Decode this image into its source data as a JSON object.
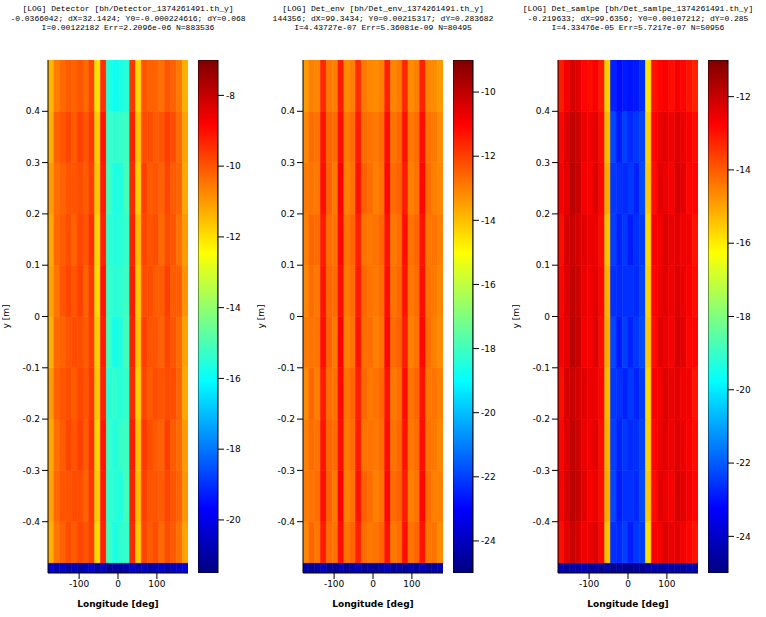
{
  "chart_data": [
    {
      "type": "heatmap",
      "title": "[LOG] Detector [bh/Detector_1374261491.th_y]",
      "subtitle": "-0.0366042; dX=32.1424; Y0=-0.000224616; dY=0.068",
      "annotations": [
        "I=0.00122182 Err=2.2096e-06 N=883536"
      ],
      "x_label": "Longitude [deg]",
      "y_label": "y [m]",
      "xlim": [
        -180,
        180
      ],
      "xticks": [
        -100,
        0,
        100
      ],
      "ylim": [
        -0.5,
        0.5
      ],
      "yticks": [
        -0.4,
        -0.3,
        -0.2,
        -0.1,
        0,
        0.1,
        0.2,
        0.3,
        0.4
      ],
      "x_edges": [
        -180,
        -165,
        -150,
        -135,
        -120,
        -105,
        -90,
        -75,
        -60,
        -45,
        -30,
        -15,
        0,
        15,
        30,
        45,
        60,
        75,
        90,
        105,
        120,
        135,
        150,
        165,
        180
      ],
      "y_edges": [
        -0.5,
        -0.48,
        -0.4,
        -0.3,
        -0.2,
        -0.1,
        0,
        0.1,
        0.2,
        0.3,
        0.4,
        0.5
      ],
      "cells": [
        [
          -20.3,
          -20.8,
          -20.5,
          -20.9,
          -20.6,
          -21.0,
          -20.7,
          -20.4,
          -20.9,
          -20.6,
          -21.2,
          -21.0,
          -21.1,
          -20.9,
          -20.5,
          -20.8,
          -20.6,
          -20.9,
          -20.7,
          -20.4,
          -20.8,
          -20.6,
          -20.5,
          -20.2
        ],
        [
          -11.3,
          -10.5,
          -10.2,
          -9.9,
          -10.1,
          -9.8,
          -10.0,
          -9.7,
          -11.9,
          -9.3,
          -15.2,
          -15.7,
          -15.4,
          -15.3,
          -9.4,
          -11.7,
          -9.8,
          -10.1,
          -9.9,
          -10.3,
          -9.9,
          -10.1,
          -10.4,
          -11.1
        ],
        [
          -11.1,
          -10.3,
          -10.0,
          -10.0,
          -9.9,
          -9.9,
          -10.2,
          -9.6,
          -11.7,
          -9.2,
          -15.4,
          -15.5,
          -15.6,
          -15.1,
          -9.3,
          -11.5,
          -9.7,
          -10.0,
          -10.0,
          -10.1,
          -9.8,
          -10.0,
          -10.2,
          -10.9
        ],
        [
          -11.2,
          -10.4,
          -10.1,
          -9.8,
          -10.0,
          -9.7,
          -10.1,
          -9.5,
          -11.8,
          -9.1,
          -15.3,
          -15.6,
          -15.3,
          -15.2,
          -9.2,
          -11.6,
          -9.6,
          -9.9,
          -10.1,
          -10.2,
          -9.7,
          -10.1,
          -10.3,
          -11.0
        ],
        [
          -11.0,
          -10.2,
          -10.0,
          -9.9,
          -10.1,
          -9.8,
          -10.0,
          -9.6,
          -11.6,
          -9.3,
          -15.5,
          -15.4,
          -15.5,
          -15.3,
          -9.4,
          -11.8,
          -9.8,
          -10.1,
          -9.9,
          -10.0,
          -9.9,
          -9.9,
          -10.2,
          -11.2
        ],
        [
          -11.3,
          -10.3,
          -10.2,
          -10.0,
          -9.9,
          -9.9,
          -10.1,
          -9.7,
          -11.7,
          -9.2,
          -15.2,
          -15.8,
          -15.6,
          -15.1,
          -9.3,
          -11.6,
          -9.7,
          -10.0,
          -10.0,
          -10.2,
          -9.8,
          -10.0,
          -10.3,
          -11.1
        ],
        [
          -11.1,
          -10.5,
          -10.0,
          -9.8,
          -10.0,
          -9.7,
          -10.2,
          -9.6,
          -11.9,
          -9.1,
          -15.3,
          -15.5,
          -15.4,
          -15.2,
          -9.2,
          -11.7,
          -9.9,
          -9.9,
          -10.1,
          -10.1,
          -9.7,
          -10.1,
          -10.1,
          -10.9
        ],
        [
          -11.2,
          -10.3,
          -10.1,
          -9.9,
          -10.2,
          -9.8,
          -10.0,
          -9.5,
          -11.8,
          -9.3,
          -15.4,
          -15.6,
          -15.5,
          -15.3,
          -9.3,
          -11.5,
          -9.8,
          -10.0,
          -9.9,
          -10.3,
          -9.9,
          -10.0,
          -10.4,
          -11.0
        ],
        [
          -11.0,
          -10.4,
          -10.2,
          -10.0,
          -10.0,
          -9.9,
          -10.1,
          -9.7,
          -11.6,
          -9.2,
          -15.2,
          -15.7,
          -15.6,
          -15.1,
          -9.4,
          -11.8,
          -9.7,
          -10.1,
          -10.0,
          -10.2,
          -9.8,
          -10.1,
          -10.2,
          -11.2
        ],
        [
          -11.3,
          -10.2,
          -10.0,
          -9.8,
          -10.1,
          -9.7,
          -10.0,
          -9.6,
          -11.7,
          -9.1,
          -15.3,
          -15.4,
          -15.3,
          -15.2,
          -9.3,
          -11.6,
          -9.9,
          -9.9,
          -10.1,
          -10.0,
          -9.7,
          -9.9,
          -10.3,
          -11.1
        ],
        [
          -11.4,
          -10.6,
          -10.3,
          -10.1,
          -10.2,
          -10.0,
          -10.3,
          -9.8,
          -12.0,
          -9.5,
          -15.6,
          -15.9,
          -15.7,
          -15.5,
          -9.6,
          -11.9,
          -10.0,
          -10.2,
          -10.2,
          -10.4,
          -10.0,
          -10.2,
          -10.5,
          -11.3
        ]
      ],
      "colorbar": {
        "range": [
          -21.5,
          -7
        ],
        "ticks": [
          -20,
          -18,
          -16,
          -14,
          -12,
          -10,
          -8
        ]
      }
    },
    {
      "type": "heatmap",
      "title": "[LOG] Det_env [bh/Det_env_1374261491.th_y]",
      "subtitle": "144356; dX=99.3434; Y0=0.00215317; dY=0.283682",
      "annotations": [
        "I=4.43727e-07 Err=5.36081e-09 N=80495"
      ],
      "x_label": "Longitude [deg]",
      "y_label": "y [m]",
      "xlim": [
        -180,
        180
      ],
      "xticks": [
        -100,
        0,
        100
      ],
      "ylim": [
        -0.5,
        0.5
      ],
      "yticks": [
        -0.4,
        -0.3,
        -0.2,
        -0.1,
        0,
        0.1,
        0.2,
        0.3,
        0.4
      ],
      "x_edges": [
        -180,
        -165,
        -150,
        -135,
        -120,
        -105,
        -90,
        -75,
        -60,
        -45,
        -30,
        -15,
        0,
        15,
        30,
        45,
        60,
        75,
        90,
        105,
        120,
        135,
        150,
        165,
        180
      ],
      "y_edges": [
        -0.5,
        -0.48,
        -0.4,
        -0.3,
        -0.2,
        -0.1,
        0,
        0.1,
        0.2,
        0.3,
        0.4,
        0.5
      ],
      "cells": [
        [
          -24.2,
          -24.6,
          -24.4,
          -24.1,
          -24.5,
          -24.7,
          -24.3,
          -24.6,
          -24.4,
          -24.2,
          -24.6,
          -24.5,
          -24.7,
          -24.3,
          -24.1,
          -24.5,
          -24.4,
          -24.6,
          -24.3,
          -24.5,
          -24.2,
          -24.6,
          -24.4,
          -24.3
        ],
        [
          -13.1,
          -12.6,
          -12.9,
          -11.4,
          -12.7,
          -12.8,
          -11.2,
          -12.8,
          -12.6,
          -11.5,
          -12.7,
          -12.9,
          -12.8,
          -12.6,
          -11.3,
          -12.9,
          -12.7,
          -11.2,
          -12.8,
          -12.6,
          -11.3,
          -12.9,
          -12.8,
          -13.2
        ],
        [
          -12.9,
          -12.8,
          -12.7,
          -11.2,
          -12.5,
          -12.9,
          -11.0,
          -13.0,
          -12.8,
          -11.3,
          -12.5,
          -12.7,
          -13.0,
          -12.8,
          -11.1,
          -12.7,
          -12.5,
          -11.4,
          -13.0,
          -12.8,
          -11.1,
          -12.7,
          -13.0,
          -13.0
        ],
        [
          -13.0,
          -12.7,
          -12.8,
          -11.3,
          -12.6,
          -12.7,
          -11.2,
          -12.9,
          -12.7,
          -11.4,
          -12.8,
          -12.8,
          -12.9,
          -12.7,
          -11.2,
          -12.8,
          -12.6,
          -11.3,
          -12.9,
          -12.7,
          -11.2,
          -12.8,
          -12.9,
          -13.1
        ],
        [
          -13.2,
          -12.6,
          -13.0,
          -11.4,
          -12.7,
          -12.8,
          -11.1,
          -12.8,
          -12.6,
          -11.5,
          -12.6,
          -12.9,
          -12.8,
          -12.6,
          -11.3,
          -12.9,
          -12.7,
          -11.2,
          -12.8,
          -12.6,
          -11.3,
          -12.9,
          -12.8,
          -13.0
        ],
        [
          -12.9,
          -12.8,
          -12.8,
          -11.2,
          -12.5,
          -12.9,
          -11.0,
          -13.0,
          -12.8,
          -11.3,
          -12.7,
          -12.7,
          -13.0,
          -12.8,
          -11.1,
          -12.7,
          -12.5,
          -11.4,
          -13.0,
          -12.8,
          -11.1,
          -12.7,
          -13.0,
          -13.2
        ],
        [
          -13.1,
          -12.7,
          -12.9,
          -11.3,
          -12.6,
          -12.7,
          -11.2,
          -12.9,
          -12.7,
          -11.4,
          -12.6,
          -12.8,
          -12.9,
          -12.7,
          -11.2,
          -12.8,
          -12.6,
          -11.3,
          -12.9,
          -12.7,
          -11.2,
          -12.8,
          -12.9,
          -13.1
        ],
        [
          -13.0,
          -12.6,
          -12.7,
          -11.4,
          -12.7,
          -12.8,
          -11.1,
          -12.8,
          -12.6,
          -11.5,
          -12.8,
          -12.9,
          -12.8,
          -12.6,
          -11.3,
          -12.9,
          -12.7,
          -11.2,
          -12.8,
          -12.6,
          -11.3,
          -12.9,
          -12.8,
          -13.0
        ],
        [
          -12.9,
          -12.8,
          -12.9,
          -11.2,
          -12.5,
          -12.9,
          -11.0,
          -13.0,
          -12.8,
          -11.3,
          -12.5,
          -12.7,
          -13.0,
          -12.8,
          -11.1,
          -12.7,
          -12.5,
          -11.4,
          -13.0,
          -12.8,
          -11.1,
          -12.7,
          -13.0,
          -13.1
        ],
        [
          -13.1,
          -12.7,
          -12.8,
          -11.3,
          -12.6,
          -12.7,
          -11.2,
          -12.9,
          -12.7,
          -11.4,
          -12.7,
          -12.8,
          -12.9,
          -12.7,
          -11.2,
          -12.8,
          -12.6,
          -11.3,
          -12.9,
          -12.7,
          -11.2,
          -12.8,
          -12.9,
          -13.2
        ],
        [
          -13.4,
          -13.0,
          -13.1,
          -11.6,
          -12.9,
          -13.0,
          -11.4,
          -13.2,
          -13.0,
          -11.7,
          -12.9,
          -13.1,
          -13.2,
          -13.0,
          -11.5,
          -13.1,
          -12.9,
          -11.6,
          -13.2,
          -13.0,
          -11.5,
          -13.1,
          -13.2,
          -13.4
        ]
      ],
      "colorbar": {
        "range": [
          -25,
          -9
        ],
        "ticks": [
          -24,
          -22,
          -20,
          -18,
          -16,
          -14,
          -12,
          -10
        ]
      }
    },
    {
      "type": "heatmap",
      "title": "[LOG] Det_samlpe [bh/Det_samlpe_1374261491.th_y]",
      "subtitle": "-0.219633; dX=99.6356; Y0=0.00107212; dY=0.285",
      "annotations": [
        "I=4.33476e-05 Err=5.7217e-07 N=50956"
      ],
      "x_label": "Longitude [deg]",
      "y_label": "y [m]",
      "xlim": [
        -180,
        180
      ],
      "xticks": [
        -100,
        0,
        100
      ],
      "ylim": [
        -0.5,
        0.5
      ],
      "yticks": [
        -0.4,
        -0.3,
        -0.2,
        -0.1,
        0,
        0.1,
        0.2,
        0.3,
        0.4
      ],
      "x_edges": [
        -180,
        -165,
        -150,
        -135,
        -120,
        -105,
        -90,
        -75,
        -60,
        -45,
        -30,
        -15,
        0,
        15,
        30,
        45,
        60,
        75,
        90,
        105,
        120,
        135,
        150,
        165,
        180
      ],
      "y_edges": [
        -0.5,
        -0.48,
        -0.4,
        -0.3,
        -0.2,
        -0.1,
        0,
        0.1,
        0.2,
        0.3,
        0.4,
        0.5
      ],
      "cells": [
        [
          -24.3,
          -24.6,
          -24.4,
          -24.5,
          -24.2,
          -24.6,
          -24.4,
          -24.7,
          -24.5,
          -24.8,
          -24.6,
          -24.7,
          -24.8,
          -24.6,
          -24.7,
          -24.5,
          -24.4,
          -24.6,
          -24.3,
          -24.5,
          -24.4,
          -24.6,
          -24.3,
          -24.4
        ],
        [
          -12.9,
          -12.4,
          -12.0,
          -12.2,
          -12.6,
          -12.5,
          -12.3,
          -12.8,
          -15.4,
          -22.6,
          -22.7,
          -22.4,
          -22.9,
          -22.5,
          -22.4,
          -15.8,
          -12.7,
          -12.6,
          -12.3,
          -12.5,
          -12.4,
          -12.6,
          -12.8,
          -13.0
        ],
        [
          -12.7,
          -12.2,
          -11.8,
          -12.0,
          -12.4,
          -12.7,
          -12.5,
          -12.9,
          -15.1,
          -22.3,
          -22.9,
          -22.6,
          -22.6,
          -22.7,
          -22.2,
          -15.5,
          -12.9,
          -12.4,
          -12.5,
          -12.7,
          -12.2,
          -12.4,
          -12.6,
          -12.8
        ],
        [
          -12.8,
          -12.3,
          -11.9,
          -12.1,
          -12.5,
          -12.6,
          -12.4,
          -12.9,
          -15.2,
          -22.4,
          -22.8,
          -22.5,
          -22.7,
          -22.6,
          -22.3,
          -15.6,
          -12.8,
          -12.5,
          -12.4,
          -12.6,
          -12.3,
          -12.5,
          -12.7,
          -12.9
        ],
        [
          -12.9,
          -12.2,
          -12.0,
          -12.2,
          -12.4,
          -12.5,
          -12.5,
          -12.8,
          -15.3,
          -22.5,
          -22.6,
          -22.8,
          -22.5,
          -22.8,
          -22.4,
          -15.7,
          -12.7,
          -12.6,
          -12.3,
          -12.5,
          -12.4,
          -12.6,
          -12.6,
          -13.0
        ],
        [
          -12.7,
          -12.4,
          -11.8,
          -12.0,
          -12.6,
          -12.7,
          -12.3,
          -12.9,
          -15.1,
          -22.3,
          -22.9,
          -22.4,
          -22.8,
          -22.5,
          -22.2,
          -15.5,
          -12.9,
          -12.4,
          -12.5,
          -12.7,
          -12.2,
          -12.4,
          -12.8,
          -12.8
        ],
        [
          -12.8,
          -12.3,
          -11.9,
          -12.1,
          -12.5,
          -12.6,
          -12.4,
          -12.8,
          -15.2,
          -22.6,
          -22.7,
          -22.6,
          -22.6,
          -22.7,
          -22.3,
          -15.6,
          -12.8,
          -12.5,
          -12.4,
          -12.6,
          -12.3,
          -12.5,
          -12.7,
          -12.9
        ],
        [
          -12.9,
          -12.2,
          -12.0,
          -12.2,
          -12.4,
          -12.5,
          -12.5,
          -12.9,
          -15.4,
          -22.4,
          -22.8,
          -22.5,
          -22.9,
          -22.6,
          -22.4,
          -15.7,
          -12.7,
          -12.6,
          -12.3,
          -12.5,
          -12.4,
          -12.6,
          -12.6,
          -13.0
        ],
        [
          -12.7,
          -12.4,
          -11.8,
          -12.0,
          -12.6,
          -12.7,
          -12.3,
          -12.8,
          -15.1,
          -22.5,
          -22.6,
          -22.7,
          -22.5,
          -22.8,
          -22.2,
          -15.5,
          -12.9,
          -12.4,
          -12.5,
          -12.7,
          -12.2,
          -12.4,
          -12.8,
          -12.8
        ],
        [
          -12.8,
          -12.3,
          -11.9,
          -12.1,
          -12.5,
          -12.6,
          -12.4,
          -12.9,
          -15.3,
          -22.3,
          -22.9,
          -22.4,
          -22.7,
          -22.5,
          -22.3,
          -15.6,
          -12.8,
          -12.5,
          -12.4,
          -12.6,
          -12.3,
          -12.5,
          -12.7,
          -12.9
        ],
        [
          -13.1,
          -12.6,
          -12.2,
          -12.4,
          -12.8,
          -12.9,
          -12.7,
          -13.1,
          -15.6,
          -22.8,
          -23.1,
          -22.9,
          -23.0,
          -22.9,
          -22.6,
          -15.9,
          -13.0,
          -12.8,
          -12.7,
          -12.9,
          -12.6,
          -12.8,
          -13.0,
          -13.2
        ]
      ],
      "colorbar": {
        "range": [
          -25,
          -11
        ],
        "ticks": [
          -24,
          -22,
          -20,
          -18,
          -16,
          -14,
          -12
        ]
      }
    }
  ]
}
